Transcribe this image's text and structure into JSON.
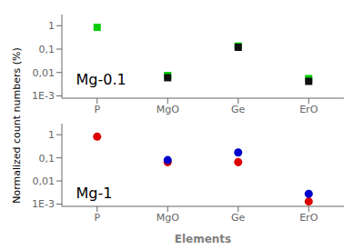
{
  "chart_data": [
    {
      "type": "scatter",
      "categories": [
        "P",
        "MgO",
        "Ge",
        "ErO"
      ],
      "annotation": "Mg-0.1",
      "ylabel": "Normalized count numbers (%)",
      "log": "y",
      "ylim": [
        0.0008,
        3.0
      ],
      "yticks": [
        {
          "value": 0.001,
          "label": "1E-3"
        },
        {
          "value": 0.01,
          "label": "0,01"
        },
        {
          "value": 0.1,
          "label": "0,1"
        },
        1
      ],
      "grid": false,
      "series": [
        {
          "color": "#00cc00",
          "marker": "square",
          "values": [
            0.85,
            0.0075,
            0.135,
            0.0055
          ]
        },
        {
          "color": "#111111",
          "marker": "square",
          "values": [
            null,
            0.006,
            0.12,
            0.0042
          ]
        }
      ]
    },
    {
      "type": "scatter",
      "categories": [
        "P",
        "MgO",
        "Ge",
        "ErO"
      ],
      "annotation": "Mg-1",
      "xlabel": "Elements",
      "log": "y",
      "ylim": [
        0.0008,
        3.0
      ],
      "yticks": [
        {
          "value": 0.001,
          "label": "1E-3"
        },
        {
          "value": 0.01,
          "label": "0,01"
        },
        {
          "value": 0.1,
          "label": "0,1"
        },
        1
      ],
      "grid": false,
      "series": [
        {
          "color": "#dd0000",
          "marker": "circle",
          "values": [
            0.82,
            0.065,
            0.065,
            0.0013
          ]
        },
        {
          "color": "#0000cc",
          "marker": "circle",
          "values": [
            null,
            0.08,
            0.17,
            0.0028
          ]
        }
      ]
    }
  ]
}
